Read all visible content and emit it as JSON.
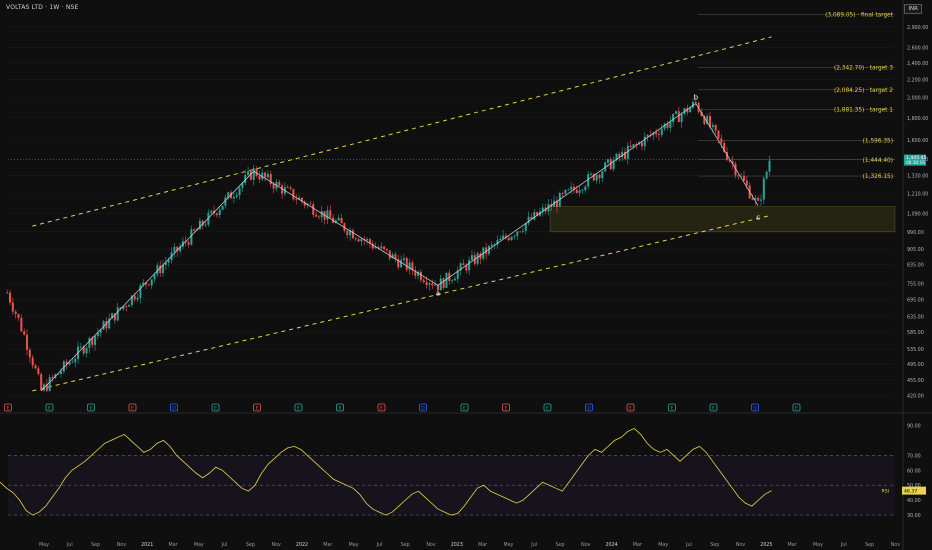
{
  "header": {
    "symbol": "VOLTAS LTD · 1W · NSE",
    "currency": "INR"
  },
  "chart_data": {
    "type": "candlestick",
    "xlabel": "",
    "ylabel": "",
    "ylim": [
      400,
      3200
    ],
    "y_scale": "log",
    "x_ticks": [
      "May",
      "Jul",
      "Sep",
      "Nov",
      "2021",
      "Mar",
      "May",
      "Jul",
      "Sep",
      "Nov",
      "2022",
      "Mar",
      "May",
      "Jul",
      "Sep",
      "Nov",
      "2023",
      "Mar",
      "May",
      "Jul",
      "Sep",
      "Nov",
      "2024",
      "Mar",
      "May",
      "Jul",
      "Sep",
      "Nov",
      "2025",
      "Mar",
      "May",
      "Jul",
      "Sep",
      "Nov"
    ],
    "y_ticks": [
      2900,
      2600,
      2400,
      2200,
      2000,
      1800,
      1600,
      1450,
      1330,
      1210,
      1090,
      990,
      905,
      835,
      755,
      695,
      635,
      585,
      535,
      495,
      455,
      420
    ],
    "price_labels": [
      {
        "text": "(3,089.05) · final target",
        "value": 3089.05
      },
      {
        "text": "(2,342.70) · target 3",
        "value": 2342.7
      },
      {
        "text": "(2,084.25) · target 2",
        "value": 2084.25
      },
      {
        "text": "(1,881.35) · target 1",
        "value": 1881.35
      },
      {
        "text": "(1,596.35)",
        "value": 1596.35
      },
      {
        "text": "(1,444.40)",
        "value": 1444.4
      },
      {
        "text": "(1,326.15)",
        "value": 1326.15
      }
    ],
    "last_price": {
      "value": "1,445.45",
      "timer": "06:30:16"
    },
    "wave_labels": [
      "a",
      "b",
      "c"
    ],
    "waypoints": [
      {
        "date": "2020-03-23",
        "price": 430
      },
      {
        "date": "2021-08-30",
        "price": 1360
      },
      {
        "date": "2022-11-28",
        "price": 748
      },
      {
        "date": "2024-08-26",
        "price": 1940
      },
      {
        "date": "2025-01-27",
        "price": 1135
      },
      {
        "date": "2025-02-24",
        "price": 1445
      }
    ],
    "demand_zone": [
      990,
      1130
    ],
    "channel": {
      "upper": [
        {
          "date": "2020-03-01",
          "price": 1020
        },
        {
          "date": "2025-03-01",
          "price": 2750
        }
      ],
      "lower": [
        {
          "date": "2020-03-01",
          "price": 430
        },
        {
          "date": "2025-03-01",
          "price": 1080
        }
      ]
    },
    "events": [
      "E",
      "E",
      "E",
      "E",
      "D",
      "E",
      "E",
      "E",
      "E",
      "E",
      "D",
      "E",
      "E",
      "E",
      "D",
      "E",
      "E",
      "E",
      "D",
      "E"
    ],
    "rsi": {
      "label": "RSI",
      "value": "46.37",
      "levels": [
        70,
        50,
        30
      ],
      "y_ticks": [
        90,
        70,
        60,
        50,
        40,
        30
      ],
      "waypoints": [
        52,
        48,
        45,
        40,
        33,
        30,
        32,
        36,
        42,
        48,
        55,
        60,
        63,
        66,
        70,
        74,
        78,
        80,
        82,
        84,
        80,
        76,
        72,
        74,
        78,
        80,
        76,
        70,
        66,
        62,
        58,
        55,
        58,
        62,
        60,
        56,
        52,
        48,
        46,
        50,
        58,
        64,
        68,
        72,
        75,
        76,
        74,
        70,
        66,
        62,
        58,
        54,
        52,
        50,
        48,
        44,
        38,
        34,
        32,
        30,
        32,
        36,
        40,
        44,
        46,
        42,
        38,
        34,
        32,
        30,
        31,
        36,
        42,
        48,
        50,
        46,
        44,
        42,
        40,
        38,
        40,
        44,
        48,
        52,
        50,
        48,
        46,
        52,
        58,
        64,
        70,
        74,
        72,
        76,
        80,
        82,
        86,
        88,
        84,
        78,
        74,
        72,
        74,
        70,
        66,
        70,
        74,
        76,
        72,
        66,
        60,
        54,
        48,
        42,
        38,
        36,
        40,
        44,
        46.37
      ]
    }
  }
}
